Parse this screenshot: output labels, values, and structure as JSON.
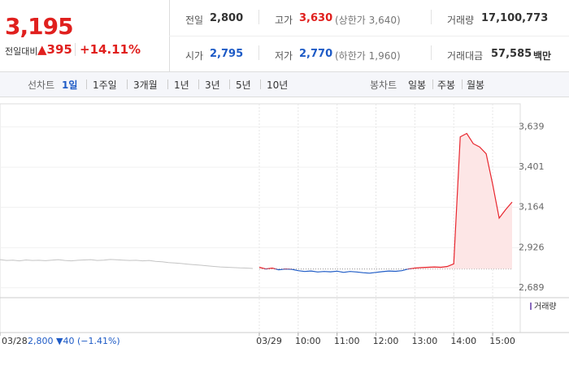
{
  "header": {
    "price": "3,195",
    "change_label": "전일대비",
    "change": "▲395",
    "change_rate": "+14.11%",
    "fields": [
      {
        "label": "전일",
        "value": "2,800"
      },
      {
        "label": "고가",
        "value": "3,630",
        "note": "(상한가 3,640)"
      },
      {
        "label": "거래량",
        "value": "17,100,773"
      },
      {
        "label": "시가",
        "value": "2,795"
      },
      {
        "label": "저가",
        "value": "2,770",
        "note": "(하한가 1,960)"
      },
      {
        "label": "거래대금",
        "value": "57,585",
        "note": "백만"
      }
    ]
  },
  "tabs": {
    "line_label": "선차트",
    "line": [
      "1일",
      "1주일",
      "3개월",
      "1년",
      "3년",
      "5년",
      "10년"
    ],
    "candle_label": "봉차트",
    "candle": [
      "일봉",
      "주봉",
      "월봉"
    ]
  },
  "chart_data": {
    "type": "line",
    "baseline": 2800,
    "fill": "#fde6e6",
    "color_below": "#1e5bc6",
    "grid": true,
    "ylim": [
      2640,
      3775
    ],
    "yticks": [
      {
        "value": 2689,
        "label": "2,689"
      },
      {
        "value": 2926,
        "label": "2,926"
      },
      {
        "value": 3164,
        "label": "3,164"
      },
      {
        "value": 3401,
        "label": "3,401"
      },
      {
        "value": 3639,
        "label": "3,639"
      }
    ],
    "xlim": [
      0,
      79
    ],
    "xticks": [
      {
        "value": 0,
        "label": "03/28"
      },
      {
        "value": 40,
        "label": "03/29"
      },
      {
        "value": 46,
        "label": "10:00"
      },
      {
        "value": 52,
        "label": "11:00"
      },
      {
        "value": 58,
        "label": "12:00"
      },
      {
        "value": 64,
        "label": "13:00"
      },
      {
        "value": 70,
        "label": "14:00"
      },
      {
        "value": 76,
        "label": "15:00"
      }
    ],
    "prev_day_summary": "2,800 ▼40 (−1.41%)",
    "volume_label": "거래량",
    "series": [
      {
        "color": "#c4c4c4",
        "values": [
          2855,
          2850,
          2852,
          2848,
          2853,
          2850,
          2851,
          2849,
          2852,
          2855,
          2850,
          2848,
          2851,
          2853,
          2855,
          2850,
          2852,
          2856,
          2854,
          2852,
          2850,
          2851,
          2848,
          2850,
          2845,
          2842,
          2838,
          2835,
          2832,
          2828,
          2825,
          2822,
          2818,
          2815,
          2812,
          2810,
          2808,
          2806,
          2805,
          2803,
          null,
          null,
          null,
          null,
          null,
          null,
          null,
          null,
          null,
          null,
          null,
          null,
          null,
          null,
          null,
          null,
          null,
          null,
          null,
          null,
          null,
          null,
          null,
          null,
          null,
          null,
          null,
          null,
          null,
          null,
          null,
          null,
          null,
          null,
          null,
          null,
          null,
          null,
          null,
          null
        ]
      },
      {
        "color": "#e8262e",
        "values": [
          null,
          null,
          null,
          null,
          null,
          null,
          null,
          null,
          null,
          null,
          null,
          null,
          null,
          null,
          null,
          null,
          null,
          null,
          null,
          null,
          null,
          null,
          null,
          null,
          null,
          null,
          null,
          null,
          null,
          null,
          null,
          null,
          null,
          null,
          null,
          null,
          null,
          null,
          null,
          null,
          2810,
          2800,
          2805,
          2795,
          2800,
          2798,
          2790,
          2785,
          2788,
          2782,
          2785,
          2783,
          2787,
          2780,
          2785,
          2782,
          2778,
          2775,
          2780,
          2784,
          2788,
          2786,
          2790,
          2800,
          2805,
          2808,
          2810,
          2812,
          2810,
          2815,
          2830,
          3580,
          3600,
          3540,
          3520,
          3480,
          3300,
          3100,
          3150,
          3195
        ]
      }
    ]
  }
}
